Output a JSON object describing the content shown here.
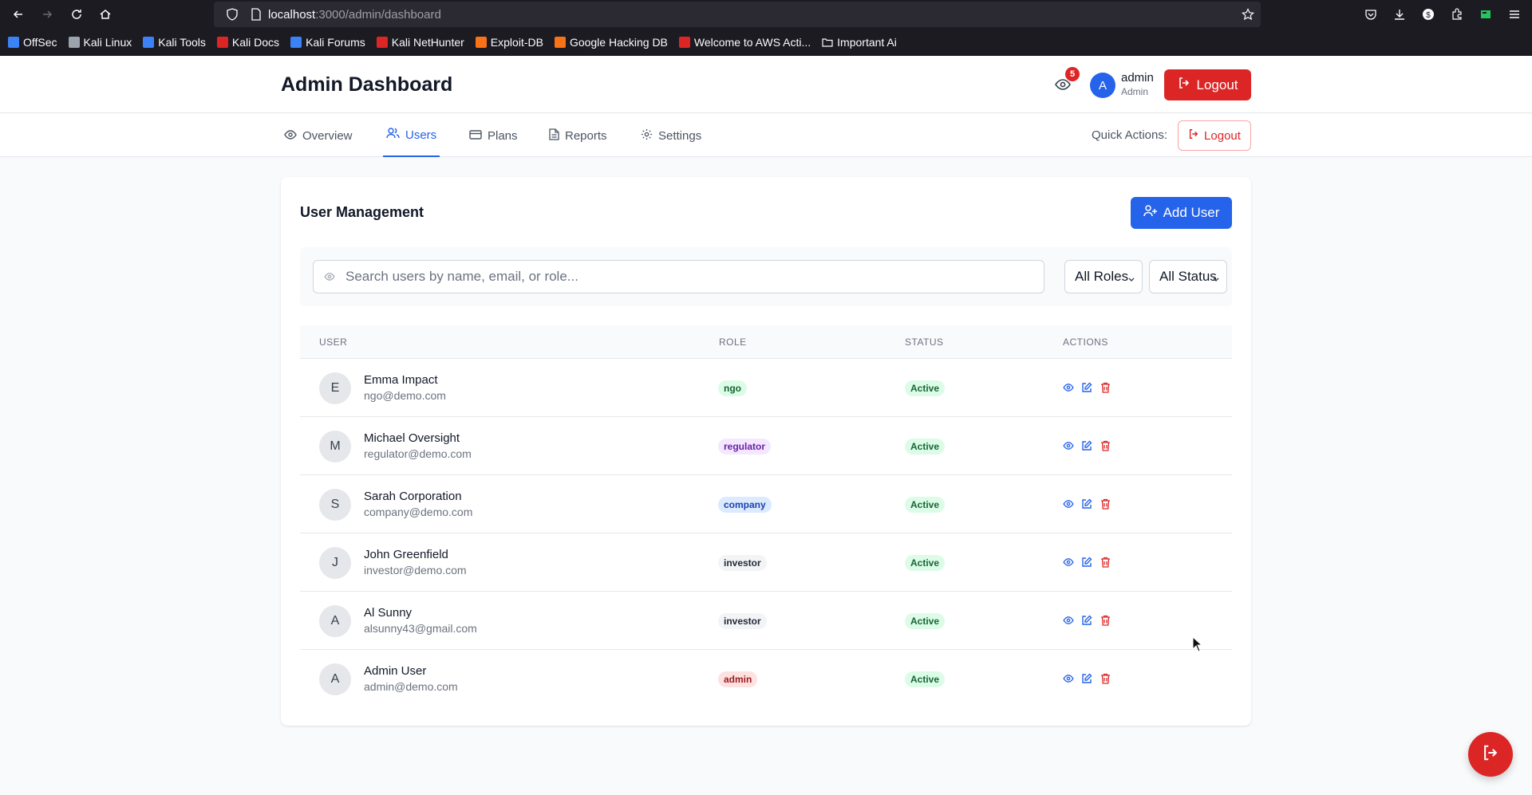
{
  "browser": {
    "url_host": "localhost",
    "url_path": ":3000/admin/dashboard",
    "bookmarks": [
      {
        "label": "OffSec",
        "color": "#3b82f6"
      },
      {
        "label": "Kali Linux",
        "color": "#9ca3af"
      },
      {
        "label": "Kali Tools",
        "color": "#3b82f6"
      },
      {
        "label": "Kali Docs",
        "color": "#dc2626"
      },
      {
        "label": "Kali Forums",
        "color": "#3b82f6"
      },
      {
        "label": "Kali NetHunter",
        "color": "#dc2626"
      },
      {
        "label": "Exploit-DB",
        "color": "#f97316"
      },
      {
        "label": "Google Hacking DB",
        "color": "#f97316"
      },
      {
        "label": "Welcome to AWS Acti...",
        "color": "#dc2626"
      },
      {
        "label": "Important Ai",
        "color": "folder"
      }
    ]
  },
  "header": {
    "title": "Admin Dashboard",
    "notification_count": "5",
    "user_initial": "A",
    "user_name": "admin",
    "user_role": "Admin",
    "logout_label": "Logout"
  },
  "tabs": [
    {
      "label": "Overview",
      "icon": "eye-icon",
      "active": false
    },
    {
      "label": "Users",
      "icon": "users-icon",
      "active": true
    },
    {
      "label": "Plans",
      "icon": "credit-card-icon",
      "active": false
    },
    {
      "label": "Reports",
      "icon": "file-text-icon",
      "active": false
    },
    {
      "label": "Settings",
      "icon": "gear-icon",
      "active": false
    }
  ],
  "quick_actions": {
    "label": "Quick Actions:",
    "logout_label": "Logout"
  },
  "user_management": {
    "title": "User Management",
    "add_user_label": "Add User",
    "search_placeholder": "Search users by name, email, or role...",
    "role_filter": "All Roles",
    "status_filter": "All Status",
    "columns": [
      "USER",
      "ROLE",
      "STATUS",
      "ACTIONS"
    ],
    "users": [
      {
        "initial": "E",
        "name": "Emma Impact",
        "email": "ngo@demo.com",
        "role": "ngo",
        "status": "Active"
      },
      {
        "initial": "M",
        "name": "Michael Oversight",
        "email": "regulator@demo.com",
        "role": "regulator",
        "status": "Active"
      },
      {
        "initial": "S",
        "name": "Sarah Corporation",
        "email": "company@demo.com",
        "role": "company",
        "status": "Active"
      },
      {
        "initial": "J",
        "name": "John Greenfield",
        "email": "investor@demo.com",
        "role": "investor",
        "status": "Active"
      },
      {
        "initial": "A",
        "name": "Al Sunny",
        "email": "alsunny43@gmail.com",
        "role": "investor",
        "status": "Active"
      },
      {
        "initial": "A",
        "name": "Admin User",
        "email": "admin@demo.com",
        "role": "admin",
        "status": "Active"
      }
    ]
  },
  "role_colors": {
    "ngo": {
      "bg": "#dcfce7",
      "fg": "#166534"
    },
    "regulator": {
      "bg": "#f3e8ff",
      "fg": "#6b21a8"
    },
    "company": {
      "bg": "#dbeafe",
      "fg": "#1e40af"
    },
    "investor": {
      "bg": "#f3f4f6",
      "fg": "#1f2937"
    },
    "admin": {
      "bg": "#fee2e2",
      "fg": "#991b1b"
    }
  }
}
